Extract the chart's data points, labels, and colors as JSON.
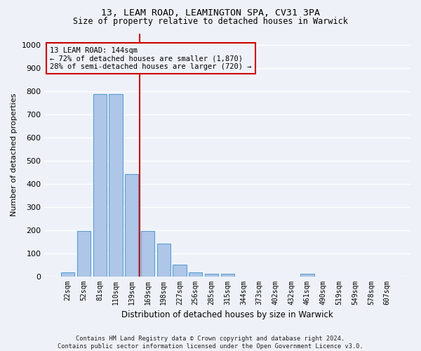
{
  "title1": "13, LEAM ROAD, LEAMINGTON SPA, CV31 3PA",
  "title2": "Size of property relative to detached houses in Warwick",
  "xlabel": "Distribution of detached houses by size in Warwick",
  "ylabel": "Number of detached properties",
  "categories": [
    "22sqm",
    "52sqm",
    "81sqm",
    "110sqm",
    "139sqm",
    "169sqm",
    "198sqm",
    "227sqm",
    "256sqm",
    "285sqm",
    "315sqm",
    "344sqm",
    "373sqm",
    "402sqm",
    "432sqm",
    "461sqm",
    "490sqm",
    "519sqm",
    "549sqm",
    "578sqm",
    "607sqm"
  ],
  "values": [
    18,
    197,
    787,
    787,
    443,
    195,
    140,
    50,
    17,
    10,
    10,
    0,
    0,
    0,
    0,
    10,
    0,
    0,
    0,
    0,
    0
  ],
  "bar_color": "#aec6e8",
  "bar_edgecolor": "#5a9fd4",
  "vline_x": 4.5,
  "vline_color": "#cc0000",
  "annotation_line1": "13 LEAM ROAD: 144sqm",
  "annotation_line2": "← 72% of detached houses are smaller (1,870)",
  "annotation_line3": "28% of semi-detached houses are larger (720) →",
  "annotation_box_edgecolor": "#cc0000",
  "background_color": "#eef2f8",
  "grid_color": "#ffffff",
  "footer_text": "Contains HM Land Registry data © Crown copyright and database right 2024.\nContains public sector information licensed under the Open Government Licence v3.0.",
  "ylim": [
    0,
    1050
  ],
  "yticks": [
    0,
    100,
    200,
    300,
    400,
    500,
    600,
    700,
    800,
    900,
    1000
  ]
}
